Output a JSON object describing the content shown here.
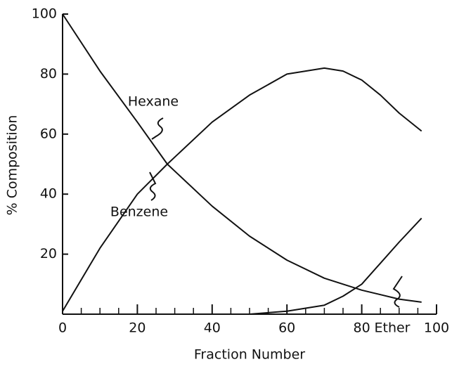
{
  "chart_data": {
    "type": "line",
    "x_label": "Fraction  Number",
    "y_label": "% Composition",
    "x": [
      0,
      10,
      20,
      28,
      40,
      50,
      60,
      70,
      75,
      80,
      85,
      90,
      96
    ],
    "series": [
      {
        "name": "Hexane",
        "color": "#111111",
        "values": [
          100,
          81,
          64,
          50,
          36,
          26,
          18,
          12,
          10,
          8,
          6.5,
          5,
          4
        ]
      },
      {
        "name": "Benzene",
        "color": "#111111",
        "values": [
          1,
          22,
          40,
          50,
          64,
          73,
          80,
          82,
          81,
          78,
          73,
          67,
          61
        ]
      },
      {
        "name": "Ether",
        "color": "#111111",
        "values": [
          null,
          null,
          null,
          null,
          null,
          0,
          1,
          3,
          6,
          10,
          17,
          24,
          32
        ]
      }
    ],
    "xlim": [
      0,
      100
    ],
    "ylim": [
      0,
      100
    ],
    "xticks": [
      0,
      20,
      40,
      60,
      80,
      100
    ],
    "xminorticks": [
      5,
      10,
      15,
      25,
      30,
      35,
      45,
      50,
      55,
      65,
      70,
      75,
      85,
      90,
      95
    ],
    "yticks": [
      20,
      40,
      60,
      80,
      100
    ],
    "grid": false
  }
}
